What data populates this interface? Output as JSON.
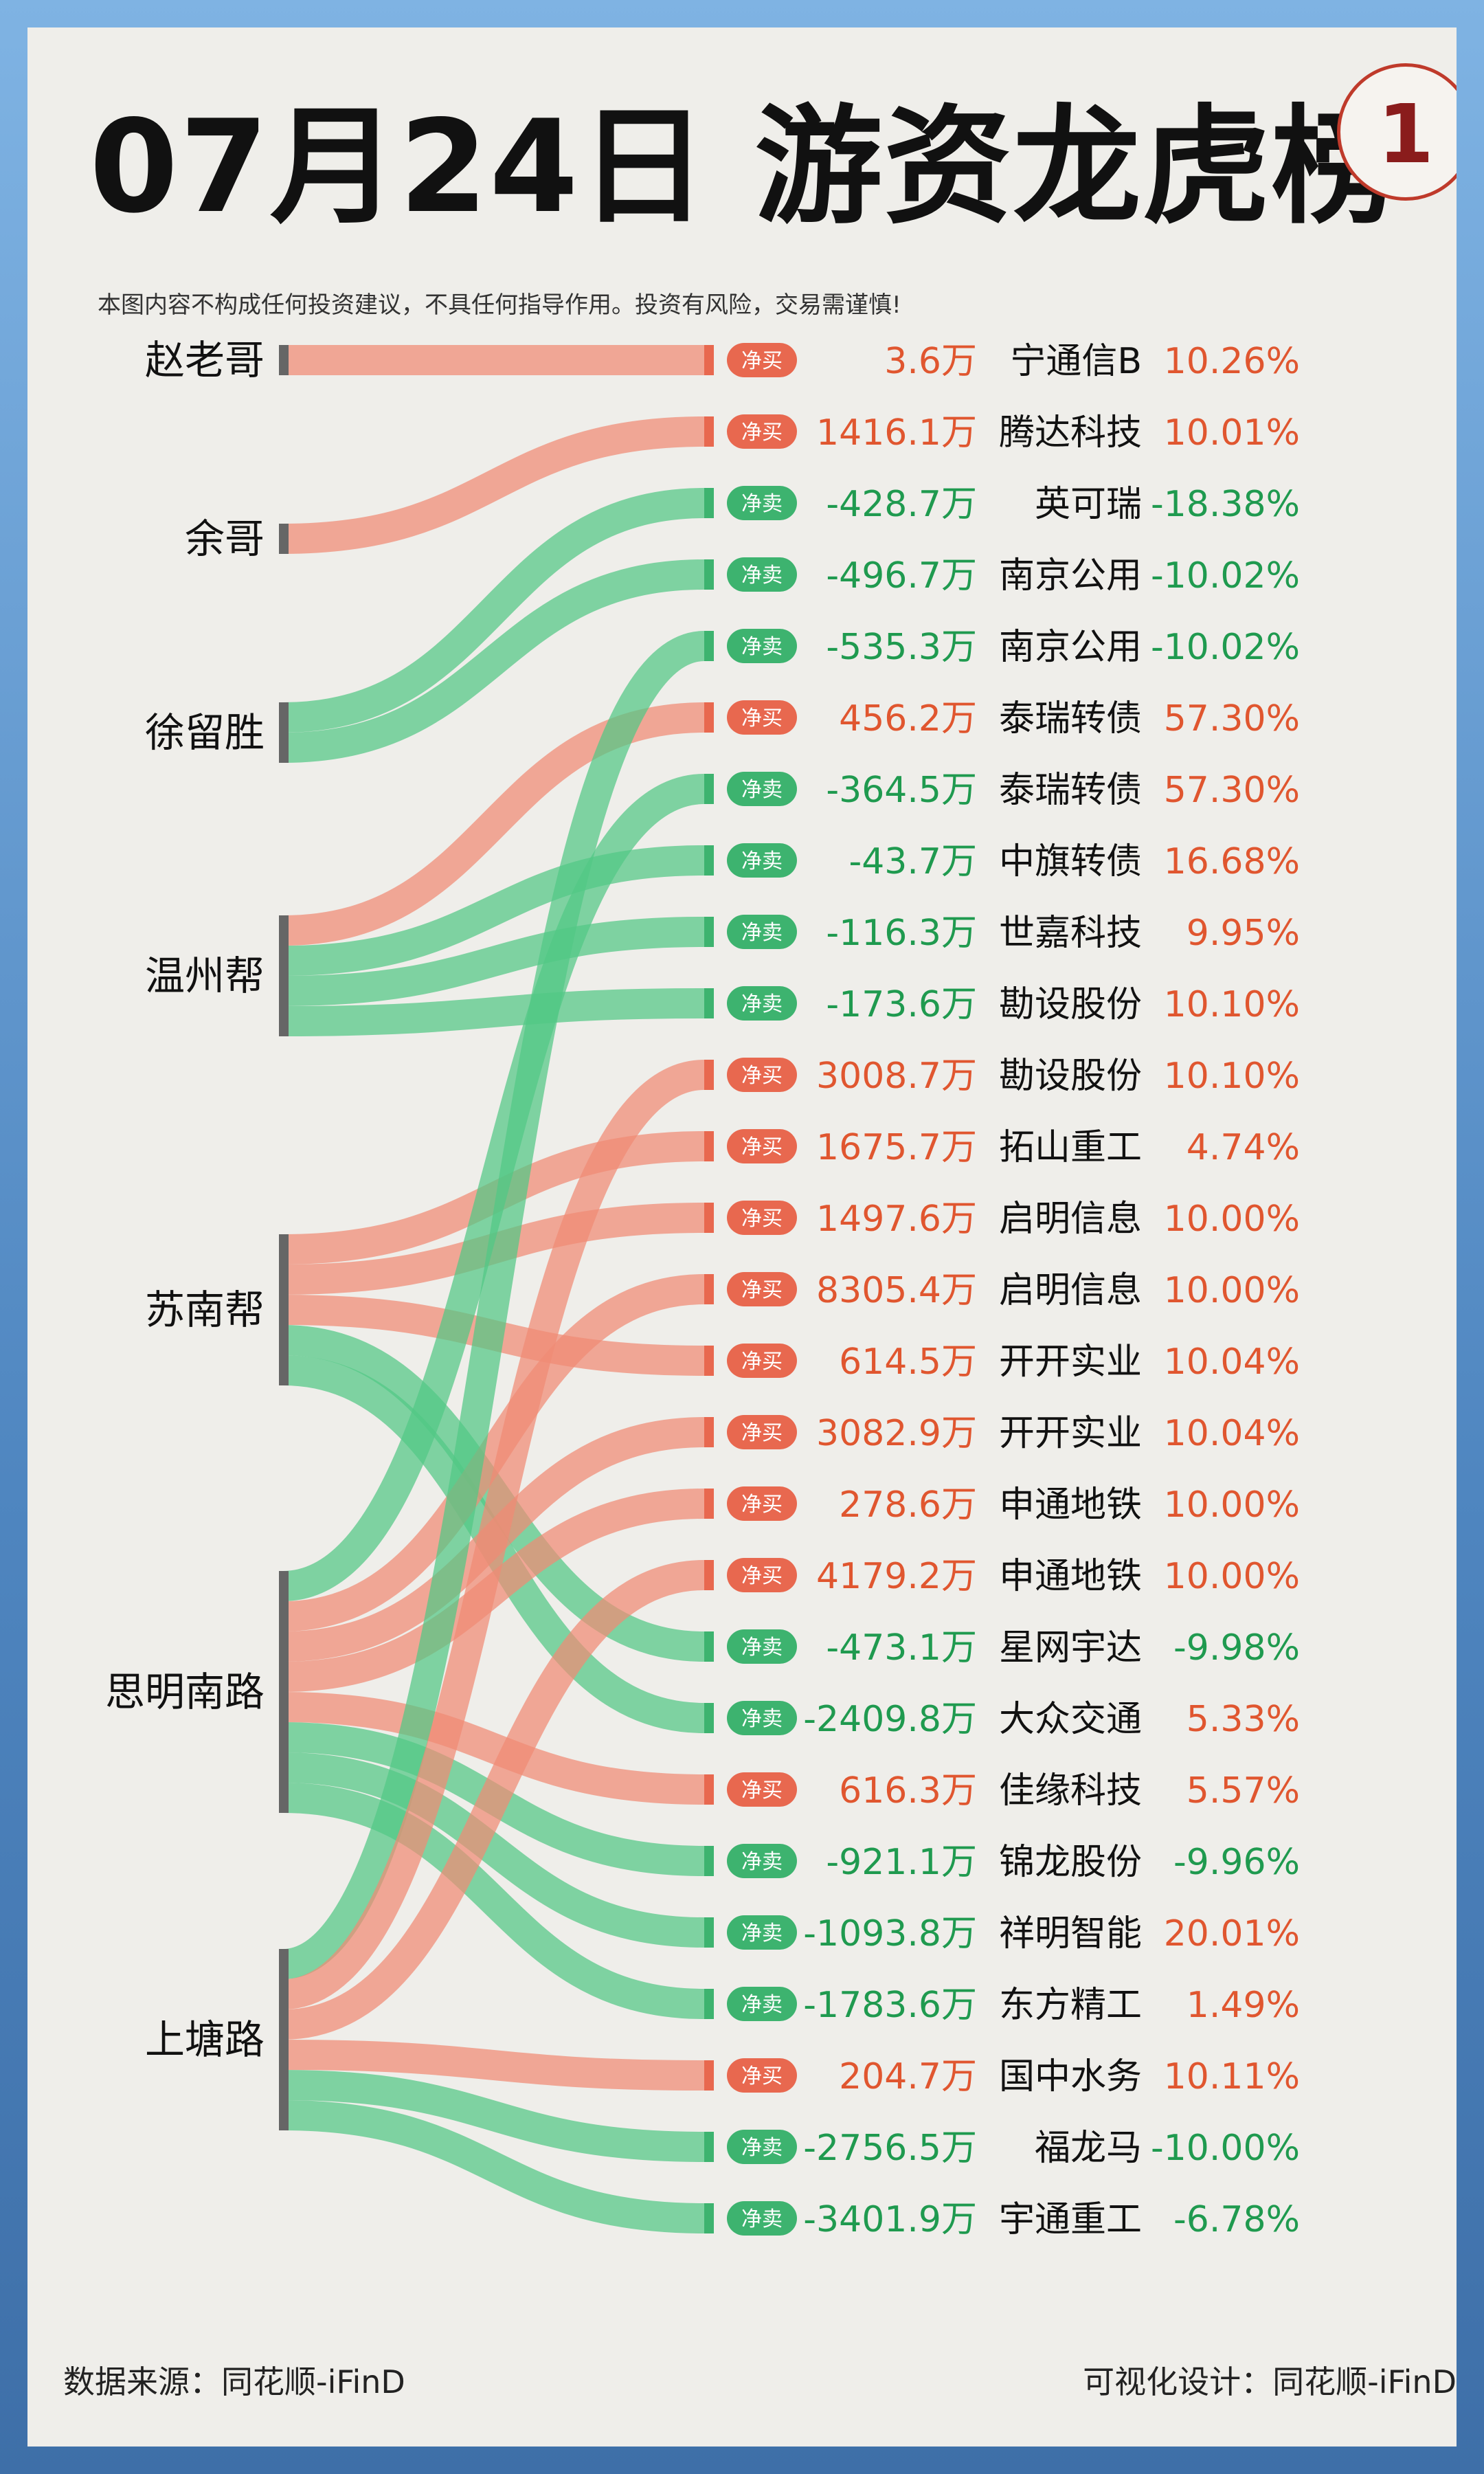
{
  "title": "07月24日 游资龙虎榜",
  "badge": "1",
  "disclaimer": "本图内容不构成任何投资建议，不具任何指导作用。投资有风险，交易需谨慎!",
  "footer": {
    "source": "数据来源：同花顺-iFinD",
    "design": "可视化设计：同花顺-iFinD"
  },
  "colors": {
    "buy": "#e8684f",
    "sell": "#3db36f",
    "buy_flow": "#f08a75",
    "sell_flow": "#52c785",
    "buy_text": "#e0562f",
    "sell_text": "#1f9a4f",
    "node": "#666666"
  },
  "chart_data": {
    "type": "sankey",
    "title": "07月24日 游资龙虎榜",
    "unit": "万",
    "tags": {
      "buy": "净买",
      "sell": "净卖"
    },
    "sources": [
      "赵老哥",
      "余哥",
      "徐留胜",
      "温州帮",
      "苏南帮",
      "思明南路",
      "上塘路"
    ],
    "flows": [
      {
        "source": "赵老哥",
        "action": "净买",
        "amount": "3.6万",
        "stock": "宁通信B",
        "change": "10.26%"
      },
      {
        "source": "余哥",
        "action": "净买",
        "amount": "1416.1万",
        "stock": "腾达科技",
        "change": "10.01%"
      },
      {
        "source": "徐留胜",
        "action": "净卖",
        "amount": "-428.7万",
        "stock": "英可瑞",
        "change": "-18.38%"
      },
      {
        "source": "徐留胜",
        "action": "净卖",
        "amount": "-496.7万",
        "stock": "南京公用",
        "change": "-10.02%"
      },
      {
        "source": "上塘路",
        "action": "净卖",
        "amount": "-535.3万",
        "stock": "南京公用",
        "change": "-10.02%"
      },
      {
        "source": "温州帮",
        "action": "净买",
        "amount": "456.2万",
        "stock": "泰瑞转债",
        "change": "57.30%"
      },
      {
        "source": "思明南路",
        "action": "净卖",
        "amount": "-364.5万",
        "stock": "泰瑞转债",
        "change": "57.30%"
      },
      {
        "source": "温州帮",
        "action": "净卖",
        "amount": "-43.7万",
        "stock": "中旗转债",
        "change": "16.68%"
      },
      {
        "source": "温州帮",
        "action": "净卖",
        "amount": "-116.3万",
        "stock": "世嘉科技",
        "change": "9.95%"
      },
      {
        "source": "温州帮",
        "action": "净卖",
        "amount": "-173.6万",
        "stock": "勘设股份",
        "change": "10.10%"
      },
      {
        "source": "上塘路",
        "action": "净买",
        "amount": "3008.7万",
        "stock": "勘设股份",
        "change": "10.10%"
      },
      {
        "source": "苏南帮",
        "action": "净买",
        "amount": "1675.7万",
        "stock": "拓山重工",
        "change": "4.74%"
      },
      {
        "source": "苏南帮",
        "action": "净买",
        "amount": "1497.6万",
        "stock": "启明信息",
        "change": "10.00%"
      },
      {
        "source": "思明南路",
        "action": "净买",
        "amount": "8305.4万",
        "stock": "启明信息",
        "change": "10.00%"
      },
      {
        "source": "苏南帮",
        "action": "净买",
        "amount": "614.5万",
        "stock": "开开实业",
        "change": "10.04%"
      },
      {
        "source": "思明南路",
        "action": "净买",
        "amount": "3082.9万",
        "stock": "开开实业",
        "change": "10.04%"
      },
      {
        "source": "思明南路",
        "action": "净买",
        "amount": "278.6万",
        "stock": "申通地铁",
        "change": "10.00%"
      },
      {
        "source": "上塘路",
        "action": "净买",
        "amount": "4179.2万",
        "stock": "申通地铁",
        "change": "10.00%"
      },
      {
        "source": "苏南帮",
        "action": "净卖",
        "amount": "-473.1万",
        "stock": "星网宇达",
        "change": "-9.98%"
      },
      {
        "source": "苏南帮",
        "action": "净卖",
        "amount": "-2409.8万",
        "stock": "大众交通",
        "change": "5.33%"
      },
      {
        "source": "思明南路",
        "action": "净买",
        "amount": "616.3万",
        "stock": "佳缘科技",
        "change": "5.57%"
      },
      {
        "source": "思明南路",
        "action": "净卖",
        "amount": "-921.1万",
        "stock": "锦龙股份",
        "change": "-9.96%"
      },
      {
        "source": "思明南路",
        "action": "净卖",
        "amount": "-1093.8万",
        "stock": "祥明智能",
        "change": "20.01%"
      },
      {
        "source": "思明南路",
        "action": "净卖",
        "amount": "-1783.6万",
        "stock": "东方精工",
        "change": "1.49%"
      },
      {
        "source": "上塘路",
        "action": "净买",
        "amount": "204.7万",
        "stock": "国中水务",
        "change": "10.11%"
      },
      {
        "source": "上塘路",
        "action": "净卖",
        "amount": "-2756.5万",
        "stock": "福龙马",
        "change": "-10.00%"
      },
      {
        "source": "上塘路",
        "action": "净卖",
        "amount": "-3401.9万",
        "stock": "宇通重工",
        "change": "-6.78%"
      }
    ]
  }
}
